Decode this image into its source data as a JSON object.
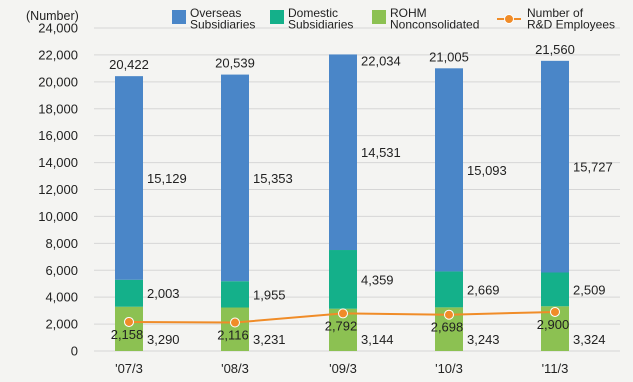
{
  "chart_data": {
    "type": "bar",
    "stacked": true,
    "y_unit_label": "(Number)",
    "categories": [
      "'07/3",
      "'08/3",
      "'09/3",
      "'10/3",
      "'11/3"
    ],
    "ylim": [
      0,
      24000
    ],
    "yticks": [
      0,
      2000,
      4000,
      6000,
      8000,
      10000,
      12000,
      14000,
      16000,
      18000,
      20000,
      22000,
      24000
    ],
    "ytick_labels": [
      "0",
      "2,000",
      "4,000",
      "6,000",
      "8,000",
      "10,000",
      "12,000",
      "14,000",
      "16,000",
      "18,000",
      "20,000",
      "22,000",
      "24,000"
    ],
    "grid": true,
    "legend_position": "top",
    "series": [
      {
        "name": "ROHM\nNonconsolidated",
        "color": "#8cc152",
        "values": [
          3290,
          3231,
          3144,
          3243,
          3324
        ],
        "labels": [
          "3,290",
          "3,231",
          "3,144",
          "3,243",
          "3,324"
        ]
      },
      {
        "name": "Domestic\nSubsidiaries",
        "color": "#14b08a",
        "values": [
          2003,
          1955,
          4359,
          2669,
          2509
        ],
        "labels": [
          "2,003",
          "1,955",
          "4,359",
          "2,669",
          "2,509"
        ]
      },
      {
        "name": "Overseas\nSubsidiaries",
        "color": "#4a86c8",
        "values": [
          15129,
          15353,
          14531,
          15093,
          15727
        ],
        "labels": [
          "15,129",
          "15,353",
          "14,531",
          "15,093",
          "15,727"
        ]
      }
    ],
    "totals": [
      20422,
      20539,
      22034,
      21005,
      21560
    ],
    "total_labels": [
      "20,422",
      "20,539",
      "22,034",
      "21,005",
      "21,560"
    ],
    "line_series": {
      "name": "Number of\nR&D Employees",
      "color": "#f08c28",
      "values": [
        2158,
        2116,
        2792,
        2698,
        2900
      ],
      "labels": [
        "2,158",
        "2,116",
        "2,792",
        "2,698",
        "2,900"
      ]
    },
    "legend_order": [
      2,
      1,
      0,
      "line"
    ]
  }
}
